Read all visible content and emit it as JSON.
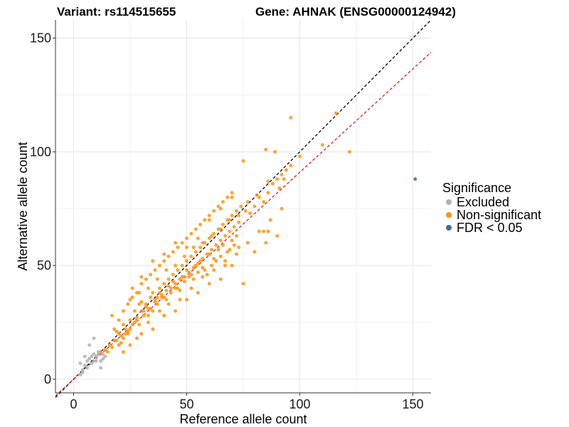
{
  "chart_data": {
    "type": "scatter",
    "title_left": "Variant: rs114515655",
    "title_right": "Gene: AHNAK (ENSG00000124942)",
    "xlabel": "Reference allele count",
    "ylabel": "Alternative allele count",
    "xlim": [
      -8,
      158
    ],
    "ylim": [
      -6,
      158
    ],
    "x_ticks": [
      0,
      50,
      100,
      150
    ],
    "y_ticks": [
      0,
      50,
      100,
      150
    ],
    "grid": true,
    "legend": {
      "title": "Significance",
      "position": "right",
      "entries": [
        {
          "key": "excluded",
          "label": "Excluded",
          "color": "#b3b3b3"
        },
        {
          "key": "nonsig",
          "label": "Non-significant",
          "color": "#ff9410"
        },
        {
          "key": "fdr",
          "label": "FDR < 0.05",
          "color": "#3a6ea5"
        }
      ]
    },
    "reference_lines": [
      {
        "name": "identity",
        "slope": 1.0,
        "intercept": 0,
        "color": "#000000",
        "dash": true
      },
      {
        "name": "fit",
        "slope": 0.91,
        "intercept": 0,
        "color": "#e41a1c",
        "dash": true
      }
    ],
    "series": [
      {
        "key": "excluded",
        "points": [
          [
            3,
            2
          ],
          [
            4,
            4
          ],
          [
            5,
            6
          ],
          [
            6,
            8
          ],
          [
            7,
            9
          ],
          [
            8,
            10
          ],
          [
            9,
            11
          ],
          [
            9,
            18
          ],
          [
            10,
            10
          ],
          [
            11,
            11
          ],
          [
            12,
            8
          ],
          [
            13,
            9
          ],
          [
            14,
            10
          ],
          [
            4,
            3
          ],
          [
            6,
            5
          ],
          [
            8,
            7
          ],
          [
            10,
            8
          ],
          [
            12,
            5
          ],
          [
            7,
            15
          ],
          [
            9,
            8
          ],
          [
            5,
            10
          ],
          [
            11,
            12
          ],
          [
            13,
            11
          ],
          [
            3,
            7
          ]
        ]
      },
      {
        "key": "nonsig",
        "points": [
          [
            12,
            12
          ],
          [
            14,
            13
          ],
          [
            16,
            15
          ],
          [
            17,
            28
          ],
          [
            18,
            17
          ],
          [
            19,
            21
          ],
          [
            20,
            20
          ],
          [
            21,
            19
          ],
          [
            22,
            24
          ],
          [
            23,
            22
          ],
          [
            24,
            20
          ],
          [
            25,
            26
          ],
          [
            26,
            40
          ],
          [
            27,
            30
          ],
          [
            28,
            26
          ],
          [
            29,
            33
          ],
          [
            30,
            34
          ],
          [
            31,
            30
          ],
          [
            32,
            32
          ],
          [
            33,
            28
          ],
          [
            34,
            36
          ],
          [
            35,
            38
          ],
          [
            36,
            34
          ],
          [
            37,
            36
          ],
          [
            38,
            40
          ],
          [
            39,
            37
          ],
          [
            40,
            42
          ],
          [
            41,
            39
          ],
          [
            42,
            44
          ],
          [
            43,
            40
          ],
          [
            44,
            46
          ],
          [
            45,
            42
          ],
          [
            46,
            48
          ],
          [
            47,
            44
          ],
          [
            48,
            50
          ],
          [
            49,
            45
          ],
          [
            50,
            52
          ],
          [
            51,
            47
          ],
          [
            52,
            54
          ],
          [
            53,
            49
          ],
          [
            54,
            56
          ],
          [
            55,
            51
          ],
          [
            56,
            58
          ],
          [
            57,
            53
          ],
          [
            58,
            60
          ],
          [
            59,
            55
          ],
          [
            60,
            62
          ],
          [
            61,
            57
          ],
          [
            62,
            64
          ],
          [
            63,
            59
          ],
          [
            64,
            66
          ],
          [
            65,
            61
          ],
          [
            66,
            68
          ],
          [
            67,
            63
          ],
          [
            68,
            70
          ],
          [
            69,
            65
          ],
          [
            70,
            72
          ],
          [
            71,
            67
          ],
          [
            72,
            74
          ],
          [
            73,
            69
          ],
          [
            74,
            76
          ],
          [
            76,
            74
          ],
          [
            78,
            73
          ],
          [
            80,
            76
          ],
          [
            82,
            80
          ],
          [
            84,
            78
          ],
          [
            86,
            82
          ],
          [
            88,
            86
          ],
          [
            90,
            88
          ],
          [
            92,
            90
          ],
          [
            94,
            92
          ],
          [
            96,
            94
          ],
          [
            30,
            45
          ],
          [
            35,
            52
          ],
          [
            40,
            55
          ],
          [
            45,
            60
          ],
          [
            50,
            58
          ],
          [
            55,
            62
          ],
          [
            60,
            70
          ],
          [
            65,
            75
          ],
          [
            70,
            80
          ],
          [
            75,
            96
          ],
          [
            85,
            101
          ],
          [
            89,
            100
          ],
          [
            93,
            88
          ],
          [
            96,
            115
          ],
          [
            100,
            98
          ],
          [
            110,
            103
          ],
          [
            116,
            117
          ],
          [
            122,
            100
          ],
          [
            35,
            22
          ],
          [
            40,
            28
          ],
          [
            45,
            30
          ],
          [
            50,
            35
          ],
          [
            55,
            38
          ],
          [
            60,
            42
          ],
          [
            65,
            44
          ],
          [
            70,
            50
          ],
          [
            75,
            42
          ],
          [
            80,
            56
          ],
          [
            85,
            60
          ],
          [
            90,
            63
          ],
          [
            28,
            18
          ],
          [
            25,
            15
          ],
          [
            22,
            12
          ],
          [
            30,
            20
          ],
          [
            33,
            25
          ],
          [
            38,
            30
          ],
          [
            42,
            33
          ],
          [
            47,
            35
          ],
          [
            52,
            40
          ],
          [
            57,
            45
          ],
          [
            62,
            48
          ],
          [
            67,
            50
          ],
          [
            72,
            55
          ],
          [
            77,
            60
          ],
          [
            82,
            65
          ],
          [
            87,
            70
          ],
          [
            92,
            75
          ],
          [
            18,
            22
          ],
          [
            20,
            26
          ],
          [
            22,
            30
          ],
          [
            24,
            33
          ],
          [
            26,
            36
          ],
          [
            28,
            38
          ],
          [
            30,
            42
          ],
          [
            32,
            44
          ],
          [
            34,
            46
          ],
          [
            36,
            48
          ],
          [
            38,
            50
          ],
          [
            40,
            52
          ],
          [
            42,
            54
          ],
          [
            44,
            56
          ],
          [
            46,
            58
          ],
          [
            48,
            60
          ],
          [
            50,
            62
          ],
          [
            52,
            64
          ],
          [
            54,
            66
          ],
          [
            56,
            68
          ],
          [
            58,
            70
          ],
          [
            60,
            72
          ],
          [
            62,
            74
          ],
          [
            64,
            76
          ],
          [
            66,
            78
          ],
          [
            68,
            80
          ],
          [
            70,
            82
          ],
          [
            20,
            15
          ],
          [
            22,
            18
          ],
          [
            24,
            21
          ],
          [
            26,
            24
          ],
          [
            28,
            27
          ],
          [
            30,
            30
          ],
          [
            32,
            33
          ],
          [
            34,
            31
          ],
          [
            36,
            35
          ],
          [
            38,
            38
          ],
          [
            40,
            36
          ],
          [
            42,
            41
          ],
          [
            44,
            43
          ],
          [
            46,
            40
          ],
          [
            48,
            45
          ],
          [
            50,
            48
          ],
          [
            52,
            46
          ],
          [
            54,
            50
          ],
          [
            56,
            52
          ],
          [
            58,
            48
          ],
          [
            60,
            55
          ],
          [
            62,
            53
          ],
          [
            64,
            57
          ],
          [
            66,
            59
          ],
          [
            68,
            56
          ],
          [
            70,
            61
          ],
          [
            72,
            63
          ],
          [
            15,
            12
          ],
          [
            17,
            14
          ],
          [
            19,
            17
          ],
          [
            21,
            16
          ],
          [
            23,
            20
          ],
          [
            25,
            22
          ],
          [
            27,
            25
          ],
          [
            29,
            24
          ],
          [
            31,
            28
          ],
          [
            33,
            31
          ],
          [
            35,
            30
          ],
          [
            37,
            33
          ],
          [
            39,
            36
          ],
          [
            41,
            35
          ],
          [
            43,
            38
          ],
          [
            45,
            40
          ],
          [
            47,
            39
          ],
          [
            49,
            43
          ],
          [
            51,
            45
          ],
          [
            53,
            44
          ],
          [
            55,
            47
          ],
          [
            57,
            49
          ],
          [
            59,
            46
          ],
          [
            61,
            50
          ],
          [
            63,
            52
          ],
          [
            65,
            54
          ],
          [
            67,
            52
          ],
          [
            69,
            57
          ],
          [
            71,
            59
          ],
          [
            73,
            58
          ],
          [
            25,
            35
          ],
          [
            29,
            38
          ],
          [
            33,
            40
          ],
          [
            37,
            44
          ],
          [
            41,
            48
          ],
          [
            45,
            50
          ],
          [
            49,
            54
          ],
          [
            53,
            58
          ],
          [
            57,
            60
          ],
          [
            61,
            63
          ],
          [
            65,
            66
          ],
          [
            69,
            70
          ],
          [
            73,
            72
          ],
          [
            77,
            78
          ],
          [
            81,
            81
          ],
          [
            86,
            87
          ],
          [
            91,
            84
          ],
          [
            86,
            65
          ],
          [
            84,
            65
          ]
        ]
      },
      {
        "key": "fdr",
        "points": [
          [
            151,
            88
          ]
        ]
      }
    ]
  }
}
